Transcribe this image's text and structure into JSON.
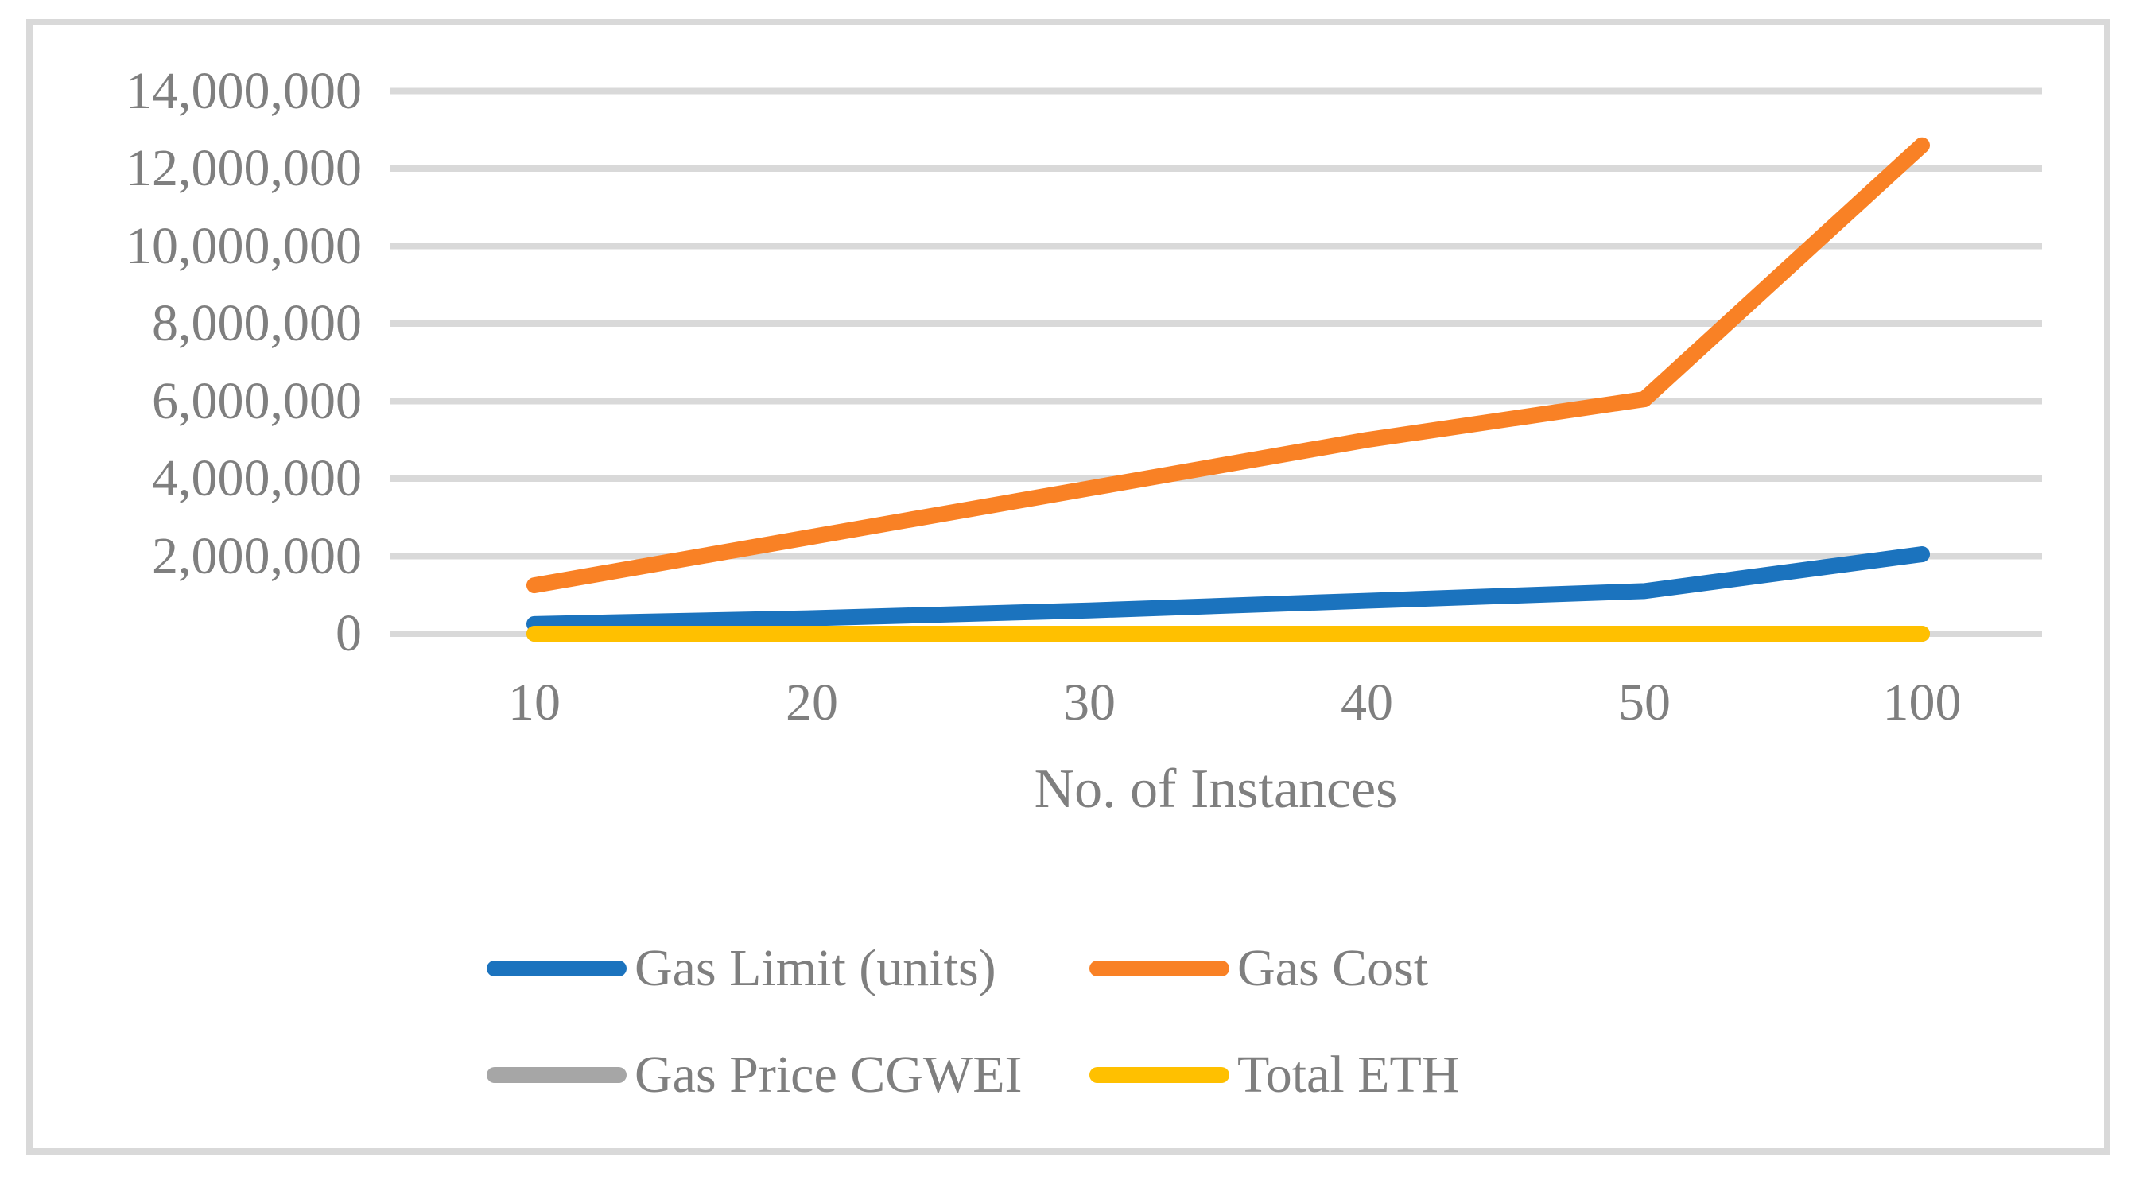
{
  "figure": {
    "background_color": "#FFFFFF",
    "border_color": "#D9D9D9",
    "gridline_color": "#D9D9D9",
    "text_color": "#7F7F7F"
  },
  "chart_data": {
    "type": "line",
    "title": "",
    "xlabel": "No. of Instances",
    "ylabel": "",
    "categories": [
      "10",
      "20",
      "30",
      "40",
      "50",
      "100"
    ],
    "series": [
      {
        "name": "Gas Limit (units)",
        "color": "#1B73BE",
        "values": [
          250000,
          400000,
          600000,
          850000,
          1100000,
          2050000
        ]
      },
      {
        "name": "Gas Cost",
        "color": "#F98125",
        "values": [
          1250000,
          2500000,
          3750000,
          5000000,
          6050000,
          12600000
        ]
      },
      {
        "name": "Gas Price CGWEI",
        "color": "#A6A6A6",
        "values": [
          0,
          0,
          0,
          0,
          0,
          0
        ]
      },
      {
        "name": "Total ETH",
        "color": "#FFC000",
        "values": [
          0,
          0,
          0,
          0,
          0,
          0
        ]
      }
    ],
    "ylim": [
      0,
      14000000
    ],
    "ytick_step": 2000000,
    "ytick_labels": [
      "0",
      "2,000,000",
      "4,000,000",
      "6,000,000",
      "8,000,000",
      "10,000,000",
      "12,000,000",
      "14,000,000"
    ],
    "grid": true,
    "legend_position": "bottom",
    "legend_rows": [
      [
        "Gas Limit (units)",
        "Gas Cost"
      ],
      [
        "Gas Price CGWEI",
        "Total ETH"
      ]
    ]
  }
}
